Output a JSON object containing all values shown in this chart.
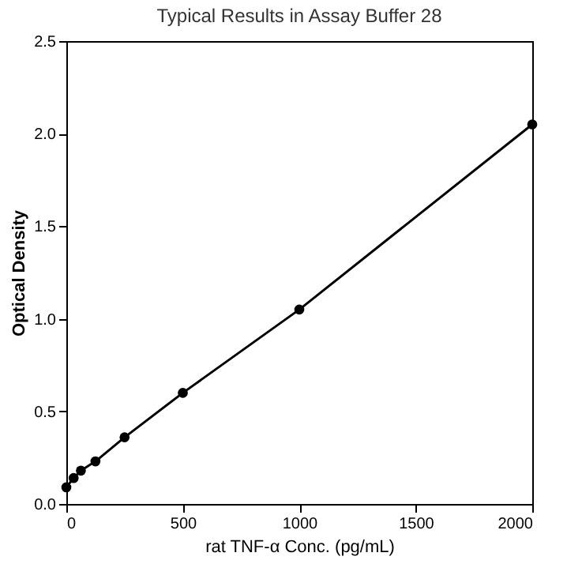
{
  "chart_data": {
    "type": "line",
    "title": "Typical Results in Assay Buffer 28",
    "xlabel": "rat TNF-α Conc. (pg/mL)",
    "ylabel": "Optical Density",
    "x": [
      0,
      31.25,
      62.5,
      125,
      250,
      500,
      1000,
      2000
    ],
    "series": [
      {
        "color": "#000000",
        "values": [
          0.09,
          0.14,
          0.18,
          0.23,
          0.36,
          0.6,
          1.05,
          2.05
        ]
      }
    ],
    "xlim": [
      0,
      2000
    ],
    "xticks": [
      0,
      500,
      1000,
      1500,
      2000
    ],
    "ylim": [
      0,
      2.5
    ],
    "yticks": [
      {
        "value": 0,
        "label": "0.0"
      },
      0.5,
      {
        "value": 1,
        "label": "1.0"
      },
      1.5,
      {
        "value": 2,
        "label": "2.0"
      },
      2.5
    ],
    "grid": false,
    "legend": false,
    "marker": "circle",
    "line_style": "solid"
  }
}
